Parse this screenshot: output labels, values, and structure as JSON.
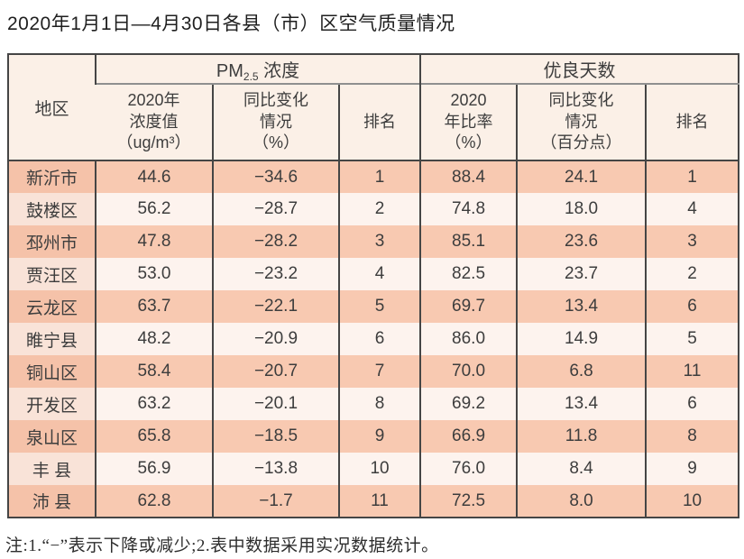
{
  "page": {
    "title": "2020年1月1日—4月30日各县（市）区空气质量情况",
    "note": "注:1.“−”表示下降或减少;2.表中数据采用实况数据统计。"
  },
  "colors": {
    "row_highlight": "#f8c9b1",
    "row_light": "#fdf3ee",
    "header_background": "#fbf0e7",
    "border": "#454545"
  },
  "table": {
    "header": {
      "region": "地区",
      "pm_group": {
        "prefix": "PM",
        "sub": "2.5",
        "suffix": " 浓度"
      },
      "good_group": "优良天数",
      "sub_headers": {
        "pm_value": "2020年\n浓度值\n（ug/m³）",
        "pm_change": "同比变化\n情况\n（%）",
        "pm_rank": "排名",
        "good_ratio": "2020\n年比率\n（%）",
        "good_change": "同比变化\n情况\n（百分点）",
        "good_rank": "排名"
      }
    },
    "rows": [
      {
        "region": "新沂市",
        "pm_value": "44.6",
        "pm_change": "−34.6",
        "pm_rank": "1",
        "good_ratio": "88.4",
        "good_change": "24.1",
        "good_rank": "1"
      },
      {
        "region": "鼓楼区",
        "pm_value": "56.2",
        "pm_change": "−28.7",
        "pm_rank": "2",
        "good_ratio": "74.8",
        "good_change": "18.0",
        "good_rank": "4"
      },
      {
        "region": "邳州市",
        "pm_value": "47.8",
        "pm_change": "−28.2",
        "pm_rank": "3",
        "good_ratio": "85.1",
        "good_change": "23.6",
        "good_rank": "3"
      },
      {
        "region": "贾汪区",
        "pm_value": "53.0",
        "pm_change": "−23.2",
        "pm_rank": "4",
        "good_ratio": "82.5",
        "good_change": "23.7",
        "good_rank": "2"
      },
      {
        "region": "云龙区",
        "pm_value": "63.7",
        "pm_change": "−22.1",
        "pm_rank": "5",
        "good_ratio": "69.7",
        "good_change": "13.4",
        "good_rank": "6"
      },
      {
        "region": "睢宁县",
        "pm_value": "48.2",
        "pm_change": "−20.9",
        "pm_rank": "6",
        "good_ratio": "86.0",
        "good_change": "14.9",
        "good_rank": "5"
      },
      {
        "region": "铜山区",
        "pm_value": "58.4",
        "pm_change": "−20.7",
        "pm_rank": "7",
        "good_ratio": "70.0",
        "good_change": "6.8",
        "good_rank": "11"
      },
      {
        "region": "开发区",
        "pm_value": "63.2",
        "pm_change": "−20.1",
        "pm_rank": "8",
        "good_ratio": "69.2",
        "good_change": "13.4",
        "good_rank": "6"
      },
      {
        "region": "泉山区",
        "pm_value": "65.8",
        "pm_change": "−18.5",
        "pm_rank": "9",
        "good_ratio": "66.9",
        "good_change": "11.8",
        "good_rank": "8"
      },
      {
        "region": "丰 县",
        "pm_value": "56.9",
        "pm_change": "−13.8",
        "pm_rank": "10",
        "good_ratio": "76.0",
        "good_change": "8.4",
        "good_rank": "9"
      },
      {
        "region": "沛 县",
        "pm_value": "62.8",
        "pm_change": "−1.7",
        "pm_rank": "11",
        "good_ratio": "72.5",
        "good_change": "8.0",
        "good_rank": "10"
      }
    ]
  }
}
